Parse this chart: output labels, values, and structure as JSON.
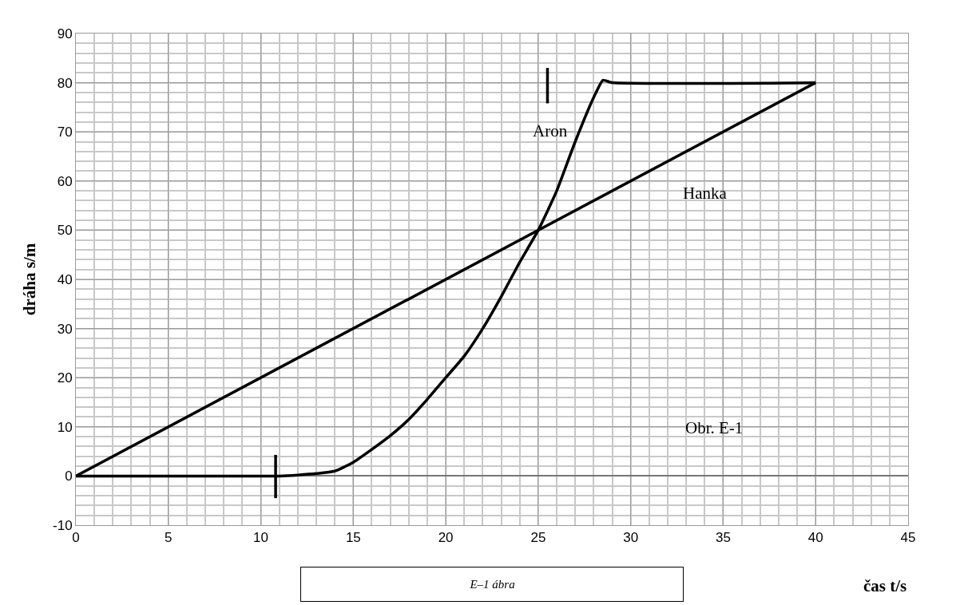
{
  "chart_data": {
    "type": "line",
    "xlabel": "čas t/s",
    "ylabel": "dráha s/m",
    "xlim": [
      0,
      45
    ],
    "xticks": [
      0,
      5,
      10,
      15,
      20,
      25,
      30,
      35,
      40,
      45
    ],
    "ylim": [
      -10,
      90
    ],
    "yticks": [
      -10,
      0,
      10,
      20,
      30,
      40,
      50,
      60,
      70,
      80,
      90
    ],
    "grid": true,
    "legend": false,
    "marker": "none",
    "line_style": "solid",
    "series": [
      {
        "name": "Hanka",
        "color": "#000000",
        "x": [
          0,
          40
        ],
        "values": [
          0,
          80
        ]
      },
      {
        "name": "Aron",
        "color": "#000000",
        "x": [
          0,
          11,
          12,
          13,
          14,
          15,
          16,
          17,
          18,
          19,
          20,
          21,
          22,
          23,
          24,
          25,
          26,
          27,
          28,
          28.5,
          29,
          40
        ],
        "values": [
          0,
          0,
          0.2,
          0.5,
          1,
          2.8,
          5.4,
          8.2,
          11.5,
          15.6,
          20,
          24.4,
          30,
          36.5,
          43.5,
          50,
          58,
          68,
          77,
          80.5,
          80,
          80
        ]
      },
      {
        "color": "#000000",
        "x": [
          10.8,
          10.8
        ],
        "values": [
          -4.5,
          4.3
        ]
      },
      {
        "color": "#000000",
        "x": [
          25.5,
          25.5
        ],
        "values": [
          75.8,
          83
        ]
      }
    ],
    "annotations": [
      "Obr. E-1",
      "E–1 ábra"
    ]
  }
}
